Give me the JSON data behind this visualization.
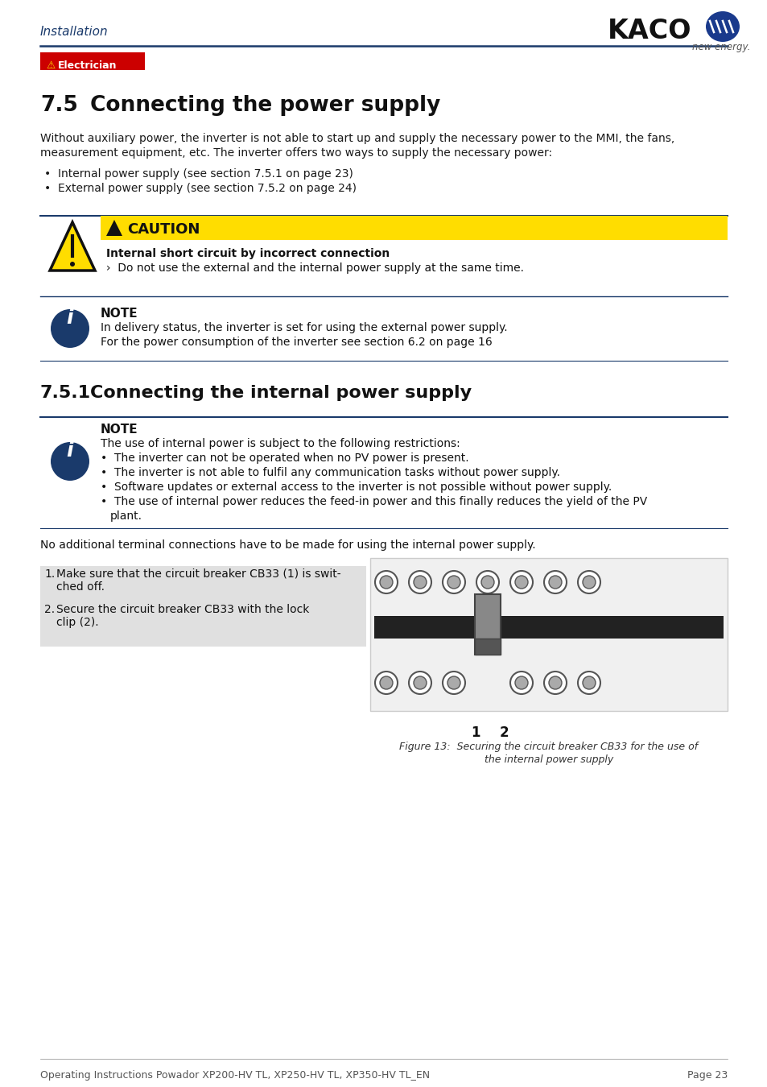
{
  "page_bg": "#ffffff",
  "header_text": "Installation",
  "header_color": "#1a3a6b",
  "header_line_color": "#1a3a6b",
  "kaco_text": "KACO",
  "kaco_subtext": "new energy.",
  "electrician_bg": "#cc0000",
  "electrician_text_color": "#ffffff",
  "section_number": "7.5",
  "section_title": "Connecting the power supply",
  "body_line1": "Without auxiliary power, the inverter is not able to start up and supply the necessary power to the MMI, the fans,",
  "body_line2": "measurement equipment, etc. The inverter offers two ways to supply the necessary power:",
  "bullet1": "•  Internal power supply (see section 7.5.1 on page 23)",
  "bullet2": "•  External power supply (see section 7.5.2 on page 24)",
  "caution_bg": "#ffdd00",
  "caution_title": "CAUTION",
  "caution_subtitle": "Internal short circuit by incorrect connection",
  "caution_body": "›  Do not use the external and the internal power supply at the same time.",
  "note1_title": "NOTE",
  "note1_line1": "In delivery status, the inverter is set for using the external power supply.",
  "note1_line2": "For the power consumption of the inverter see section 6.2 on page 16",
  "section2_number": "7.5.1",
  "section2_title": "Connecting the internal power supply",
  "note2_title": "NOTE",
  "note2_body": "The use of internal power is subject to the following restrictions:",
  "note2_bullets": [
    "The inverter can not be operated when no PV power is present.",
    "The inverter is not able to fulfil any communication tasks without power supply.",
    "Software updates or external access to the inverter is not possible without power supply.",
    "The use of internal power reduces the feed-in power and this finally reduces the yield of the PV plant."
  ],
  "no_terminal_text": "No additional terminal connections have to be made for using the internal power supply.",
  "step1_num": "1.",
  "step1_text": "Make sure that the circuit breaker CB33 (1) is swit-\nched off.",
  "step2_num": "2.",
  "step2_text": "Secure the circuit breaker CB33 with the lock\nclip (2).",
  "figure_caption_line1": "Figure 13:  Securing the circuit breaker CB33 for the use of",
  "figure_caption_line2": "the internal power supply",
  "footer_text": "Operating Instructions Powador XP200-HV TL, XP250-HV TL, XP350-HV TL_EN",
  "footer_page": "Page 23",
  "text_color": "#1a1a1a",
  "line_color": "#1a3a6b",
  "note_icon_color": "#1a3a6b"
}
